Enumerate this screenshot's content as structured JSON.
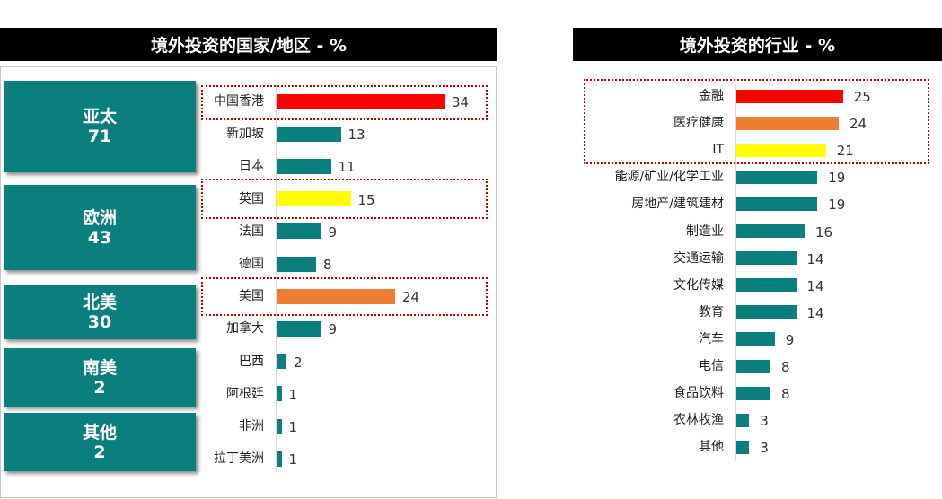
{
  "left_title": "境外投资的国家/地区 - %",
  "right_title": "境外投资的行业 - %",
  "colors": {
    "teal": "#0b7e7e",
    "red": "#ff0000",
    "orange": "#ed7d31",
    "yellow": "#ffff00"
  },
  "regions": [
    {
      "name": "亚太",
      "value": "71"
    },
    {
      "name": "欧洲",
      "value": "43"
    },
    {
      "name": "北美",
      "value": "30"
    },
    {
      "name": "南美",
      "value": "2"
    },
    {
      "name": "其他",
      "value": "2"
    }
  ],
  "chart_data": [
    {
      "type": "bar",
      "orientation": "horizontal",
      "title": "境外投资的国家/地区 - %",
      "categories": [
        "中国香港",
        "新加坡",
        "日本",
        "英国",
        "法国",
        "德国",
        "美国",
        "加拿大",
        "巴西",
        "阿根廷",
        "非洲",
        "拉丁美洲"
      ],
      "values": [
        34,
        13,
        11,
        15,
        9,
        8,
        24,
        9,
        2,
        1,
        1,
        1
      ],
      "bar_colors": [
        "red",
        "teal",
        "teal",
        "yellow",
        "teal",
        "teal",
        "orange",
        "teal",
        "teal",
        "teal",
        "teal",
        "teal"
      ],
      "highlighted": [
        "中国香港",
        "英国",
        "美国"
      ]
    },
    {
      "type": "bar",
      "orientation": "horizontal",
      "title": "境外投资的行业 - %",
      "categories": [
        "金融",
        "医疗健康",
        "IT",
        "能源/矿业/化学工业",
        "房地产/建筑建材",
        "制造业",
        "交通运输",
        "文化传媒",
        "教育",
        "汽车",
        "电信",
        "食品饮料",
        "农林牧渔",
        "其他"
      ],
      "values": [
        25,
        24,
        21,
        19,
        19,
        16,
        14,
        14,
        14,
        9,
        8,
        8,
        3,
        3
      ],
      "bar_colors": [
        "red",
        "orange",
        "yellow",
        "teal",
        "teal",
        "teal",
        "teal",
        "teal",
        "teal",
        "teal",
        "teal",
        "teal",
        "teal",
        "teal"
      ],
      "highlighted": [
        "金融",
        "医疗健康",
        "IT"
      ]
    }
  ]
}
